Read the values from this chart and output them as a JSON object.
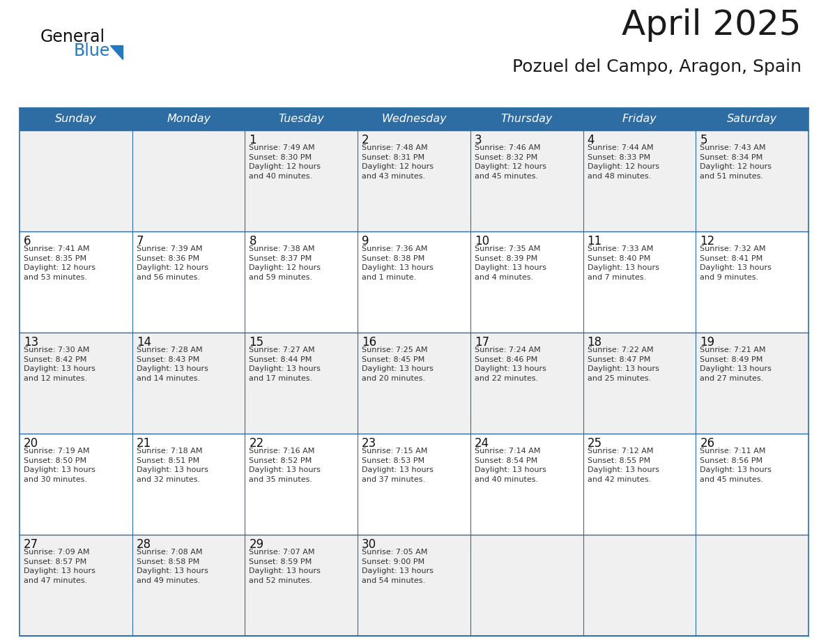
{
  "title": "April 2025",
  "subtitle": "Pozuel del Campo, Aragon, Spain",
  "header_bg": "#2E6DA4",
  "header_text_color": "#FFFFFF",
  "cell_bg_odd": "#F0F0F0",
  "cell_bg_even": "#FFFFFF",
  "day_headers": [
    "Sunday",
    "Monday",
    "Tuesday",
    "Wednesday",
    "Thursday",
    "Friday",
    "Saturday"
  ],
  "title_color": "#1a1a1a",
  "subtitle_color": "#1a1a1a",
  "border_color": "#2E6DA4",
  "text_color": "#333333",
  "day_num_color": "#111111",
  "logo_general_color": "#111111",
  "logo_blue_color": "#2479BD",
  "weeks": [
    [
      {
        "day": "",
        "info": ""
      },
      {
        "day": "",
        "info": ""
      },
      {
        "day": "1",
        "info": "Sunrise: 7:49 AM\nSunset: 8:30 PM\nDaylight: 12 hours\nand 40 minutes."
      },
      {
        "day": "2",
        "info": "Sunrise: 7:48 AM\nSunset: 8:31 PM\nDaylight: 12 hours\nand 43 minutes."
      },
      {
        "day": "3",
        "info": "Sunrise: 7:46 AM\nSunset: 8:32 PM\nDaylight: 12 hours\nand 45 minutes."
      },
      {
        "day": "4",
        "info": "Sunrise: 7:44 AM\nSunset: 8:33 PM\nDaylight: 12 hours\nand 48 minutes."
      },
      {
        "day": "5",
        "info": "Sunrise: 7:43 AM\nSunset: 8:34 PM\nDaylight: 12 hours\nand 51 minutes."
      }
    ],
    [
      {
        "day": "6",
        "info": "Sunrise: 7:41 AM\nSunset: 8:35 PM\nDaylight: 12 hours\nand 53 minutes."
      },
      {
        "day": "7",
        "info": "Sunrise: 7:39 AM\nSunset: 8:36 PM\nDaylight: 12 hours\nand 56 minutes."
      },
      {
        "day": "8",
        "info": "Sunrise: 7:38 AM\nSunset: 8:37 PM\nDaylight: 12 hours\nand 59 minutes."
      },
      {
        "day": "9",
        "info": "Sunrise: 7:36 AM\nSunset: 8:38 PM\nDaylight: 13 hours\nand 1 minute."
      },
      {
        "day": "10",
        "info": "Sunrise: 7:35 AM\nSunset: 8:39 PM\nDaylight: 13 hours\nand 4 minutes."
      },
      {
        "day": "11",
        "info": "Sunrise: 7:33 AM\nSunset: 8:40 PM\nDaylight: 13 hours\nand 7 minutes."
      },
      {
        "day": "12",
        "info": "Sunrise: 7:32 AM\nSunset: 8:41 PM\nDaylight: 13 hours\nand 9 minutes."
      }
    ],
    [
      {
        "day": "13",
        "info": "Sunrise: 7:30 AM\nSunset: 8:42 PM\nDaylight: 13 hours\nand 12 minutes."
      },
      {
        "day": "14",
        "info": "Sunrise: 7:28 AM\nSunset: 8:43 PM\nDaylight: 13 hours\nand 14 minutes."
      },
      {
        "day": "15",
        "info": "Sunrise: 7:27 AM\nSunset: 8:44 PM\nDaylight: 13 hours\nand 17 minutes."
      },
      {
        "day": "16",
        "info": "Sunrise: 7:25 AM\nSunset: 8:45 PM\nDaylight: 13 hours\nand 20 minutes."
      },
      {
        "day": "17",
        "info": "Sunrise: 7:24 AM\nSunset: 8:46 PM\nDaylight: 13 hours\nand 22 minutes."
      },
      {
        "day": "18",
        "info": "Sunrise: 7:22 AM\nSunset: 8:47 PM\nDaylight: 13 hours\nand 25 minutes."
      },
      {
        "day": "19",
        "info": "Sunrise: 7:21 AM\nSunset: 8:49 PM\nDaylight: 13 hours\nand 27 minutes."
      }
    ],
    [
      {
        "day": "20",
        "info": "Sunrise: 7:19 AM\nSunset: 8:50 PM\nDaylight: 13 hours\nand 30 minutes."
      },
      {
        "day": "21",
        "info": "Sunrise: 7:18 AM\nSunset: 8:51 PM\nDaylight: 13 hours\nand 32 minutes."
      },
      {
        "day": "22",
        "info": "Sunrise: 7:16 AM\nSunset: 8:52 PM\nDaylight: 13 hours\nand 35 minutes."
      },
      {
        "day": "23",
        "info": "Sunrise: 7:15 AM\nSunset: 8:53 PM\nDaylight: 13 hours\nand 37 minutes."
      },
      {
        "day": "24",
        "info": "Sunrise: 7:14 AM\nSunset: 8:54 PM\nDaylight: 13 hours\nand 40 minutes."
      },
      {
        "day": "25",
        "info": "Sunrise: 7:12 AM\nSunset: 8:55 PM\nDaylight: 13 hours\nand 42 minutes."
      },
      {
        "day": "26",
        "info": "Sunrise: 7:11 AM\nSunset: 8:56 PM\nDaylight: 13 hours\nand 45 minutes."
      }
    ],
    [
      {
        "day": "27",
        "info": "Sunrise: 7:09 AM\nSunset: 8:57 PM\nDaylight: 13 hours\nand 47 minutes."
      },
      {
        "day": "28",
        "info": "Sunrise: 7:08 AM\nSunset: 8:58 PM\nDaylight: 13 hours\nand 49 minutes."
      },
      {
        "day": "29",
        "info": "Sunrise: 7:07 AM\nSunset: 8:59 PM\nDaylight: 13 hours\nand 52 minutes."
      },
      {
        "day": "30",
        "info": "Sunrise: 7:05 AM\nSunset: 9:00 PM\nDaylight: 13 hours\nand 54 minutes."
      },
      {
        "day": "",
        "info": ""
      },
      {
        "day": "",
        "info": ""
      },
      {
        "day": "",
        "info": ""
      }
    ]
  ]
}
